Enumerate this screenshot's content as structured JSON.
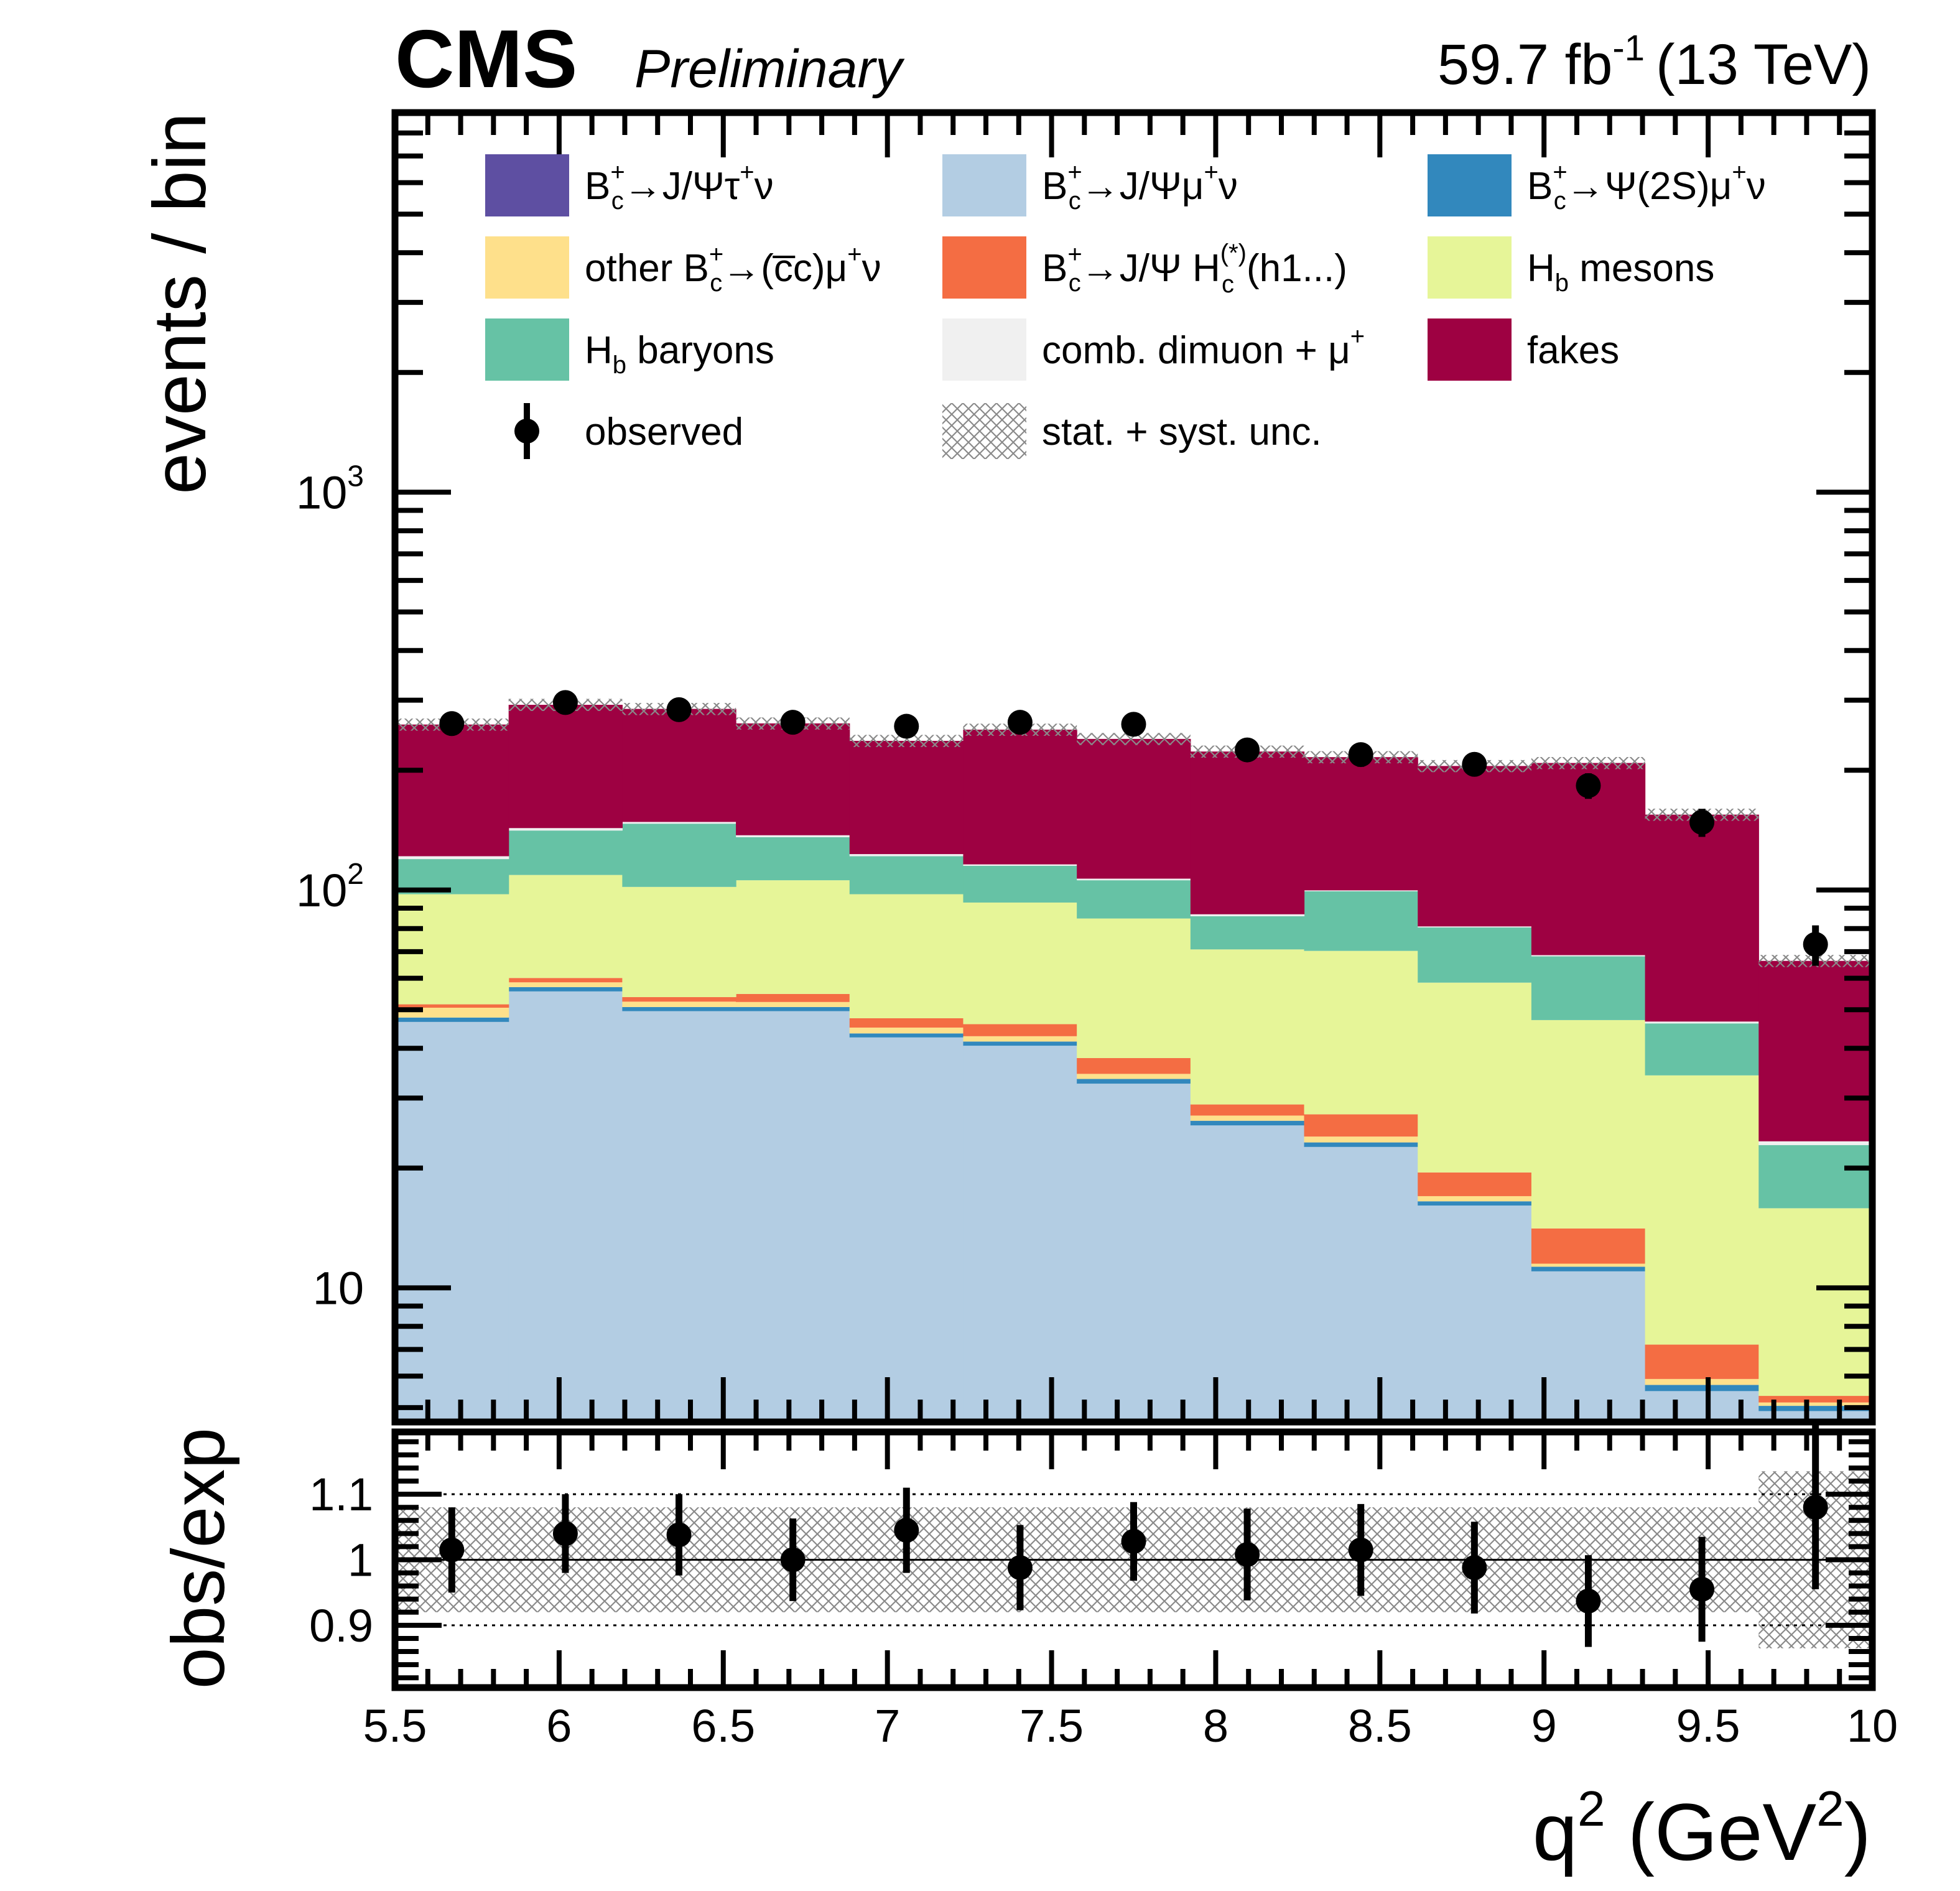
{
  "header": {
    "experiment": "CMS",
    "status": "Preliminary",
    "luminosity_value": "59.7 fb",
    "luminosity_exp": "-1",
    "energy": "(13 TeV)"
  },
  "chart_data": {
    "type": "stacked histogram with ratio panel",
    "x_edges": [
      5.5,
      5.84615,
      6.19231,
      6.53846,
      6.88462,
      7.23077,
      7.57692,
      7.92308,
      8.26923,
      8.61538,
      8.96154,
      9.30769,
      9.65385,
      10.0
    ],
    "xlim": [
      5.5,
      10
    ],
    "xlabel": {
      "base": "q",
      "exp": "2",
      "rest": " (GeV",
      "exp2": "2",
      "end": ")"
    },
    "x_ticks": [
      "5.5",
      "6",
      "6.5",
      "7",
      "7.5",
      "8",
      "8.5",
      "9",
      "9.5",
      "10"
    ],
    "top_panel": {
      "ylabel": "events / bin",
      "yscale": "log",
      "ylim": [
        4.6,
        9000
      ],
      "y_ticks": [
        {
          "base": "10",
          "exp": ""
        },
        {
          "base": "10",
          "exp": "2"
        },
        {
          "base": "10",
          "exp": "3"
        }
      ],
      "series": [
        {
          "name": "bc_jpsi_tau",
          "color": "#5e4fa2",
          "values": [
            0.6,
            0.6,
            0.6,
            0.6,
            0.6,
            0.6,
            0.6,
            0.6,
            0.6,
            0.6,
            0.6,
            0.6,
            0.6
          ]
        },
        {
          "name": "bc_jpsi_mu",
          "color": "#b3cde3",
          "values": [
            46,
            55,
            49,
            49,
            42,
            40,
            32,
            25,
            22,
            15.5,
            10.4,
            4.9,
            4.3
          ]
        },
        {
          "name": "bc_psi2s_mu",
          "color": "#3288bd",
          "values": [
            1.2,
            1.4,
            1.2,
            1.2,
            1.0,
            1.0,
            0.9,
            0.7,
            0.6,
            0.4,
            0.3,
            0.2,
            0.15
          ]
        },
        {
          "name": "other_bc",
          "color": "#fee08b",
          "values": [
            2.8,
            1.6,
            1.6,
            1.5,
            1.5,
            1.3,
            1.0,
            0.8,
            0.8,
            0.5,
            0.2,
            0.2,
            0.1
          ]
        },
        {
          "name": "bc_jpsi_hc",
          "color": "#f46d43",
          "values": [
            1.0,
            1.5,
            1.4,
            2.5,
            2.5,
            3.1,
            3.3,
            1.8,
            3.3,
            2.5,
            2.6,
            1.3,
            0.2
          ]
        },
        {
          "name": "hb_mesons",
          "color": "#e6f598",
          "values": [
            46,
            49,
            48,
            51,
            50,
            47,
            47,
            42,
            43,
            39,
            33,
            27,
            10.5
          ]
        },
        {
          "name": "hb_baryons",
          "color": "#66c2a5",
          "values": [
            22,
            32,
            45,
            30,
            24,
            22,
            21,
            15,
            29,
            22,
            21,
            12,
            7
          ]
        },
        {
          "name": "comb_dimuon",
          "color": "#f0f0f0",
          "values": [
            2,
            2,
            1.5,
            1.5,
            1.5,
            1,
            1,
            1,
            0.5,
            0.5,
            0.5,
            0.5,
            0.5
          ]
        },
        {
          "name": "fakes",
          "color": "#9e0142",
          "values": [
            139,
            149,
            137,
            125,
            114,
            137,
            133,
            136,
            116,
            124,
            140,
            108,
            43
          ]
        }
      ],
      "observed": {
        "x": [
          5.673,
          6.019,
          6.365,
          6.712,
          7.058,
          7.404,
          7.75,
          8.096,
          8.442,
          8.788,
          9.135,
          9.481,
          9.827
        ],
        "y": [
          262,
          296,
          284,
          264,
          258,
          264,
          261,
          225,
          219,
          207,
          183,
          148,
          73
        ],
        "err": [
          16,
          17,
          17,
          16,
          16,
          16,
          16,
          15,
          15,
          14,
          13.5,
          12,
          8.5
        ]
      }
    },
    "ratio_panel": {
      "ylabel": "obs/exp",
      "ylim": [
        0.805,
        1.195
      ],
      "y_ticks": [
        "0.9",
        "1",
        "1.1"
      ],
      "values": [
        1.015,
        1.04,
        1.038,
        1.0,
        1.045,
        0.988,
        1.028,
        1.008,
        1.015,
        0.988,
        0.937,
        0.955,
        1.08
      ],
      "err": [
        0.065,
        0.06,
        0.062,
        0.063,
        0.065,
        0.065,
        0.06,
        0.07,
        0.07,
        0.07,
        0.07,
        0.08,
        0.125
      ],
      "band": [
        0.08,
        0.08,
        0.08,
        0.08,
        0.08,
        0.08,
        0.08,
        0.08,
        0.08,
        0.08,
        0.08,
        0.08,
        0.135
      ]
    },
    "legend": {
      "position": "top",
      "entries": [
        {
          "kind": "fill",
          "series": "bc_jpsi_tau",
          "label": {
            "b": "B",
            "sup": "+",
            "sub": "c",
            "rest": "→J/Ψτ",
            "sup2": "+",
            "end": "ν"
          }
        },
        {
          "kind": "fill",
          "series": "bc_jpsi_mu",
          "label": {
            "b": "B",
            "sup": "+",
            "sub": "c",
            "rest": "→J/Ψμ",
            "sup2": "+",
            "end": "ν"
          }
        },
        {
          "kind": "fill",
          "series": "bc_psi2s_mu",
          "label": {
            "b": "B",
            "sup": "+",
            "sub": "c",
            "rest": "→Ψ(2S)μ",
            "sup2": "+",
            "end": "ν"
          }
        },
        {
          "kind": "fill",
          "series": "other_bc",
          "label": {
            "b": "other B",
            "sup": "+",
            "sub": "c",
            "rest": "→(c̅c)μ",
            "sup2": "+",
            "end": "ν"
          }
        },
        {
          "kind": "fill",
          "series": "bc_jpsi_hc",
          "label": {
            "b": "B",
            "sup": "+",
            "sub": "c",
            "rest": "→J/Ψ H",
            "sup2": "(*)",
            "sub2": "c",
            "end": "(h1...)"
          }
        },
        {
          "kind": "fill",
          "series": "hb_mesons",
          "label": {
            "b": "H",
            "sub": "b",
            "end": " mesons"
          }
        },
        {
          "kind": "fill",
          "series": "hb_baryons",
          "label": {
            "b": "H",
            "sub": "b",
            "end": " baryons"
          }
        },
        {
          "kind": "fill",
          "series": "comb_dimuon",
          "label": {
            "b": "comb. dimuon + μ",
            "sup": "+"
          }
        },
        {
          "kind": "fill",
          "series": "fakes",
          "label": {
            "b": "fakes"
          }
        },
        {
          "kind": "marker",
          "series": "observed",
          "label": {
            "b": "observed"
          }
        },
        {
          "kind": "hatch",
          "series": "unc",
          "label": {
            "b": "stat. + syst. unc."
          }
        }
      ]
    }
  }
}
